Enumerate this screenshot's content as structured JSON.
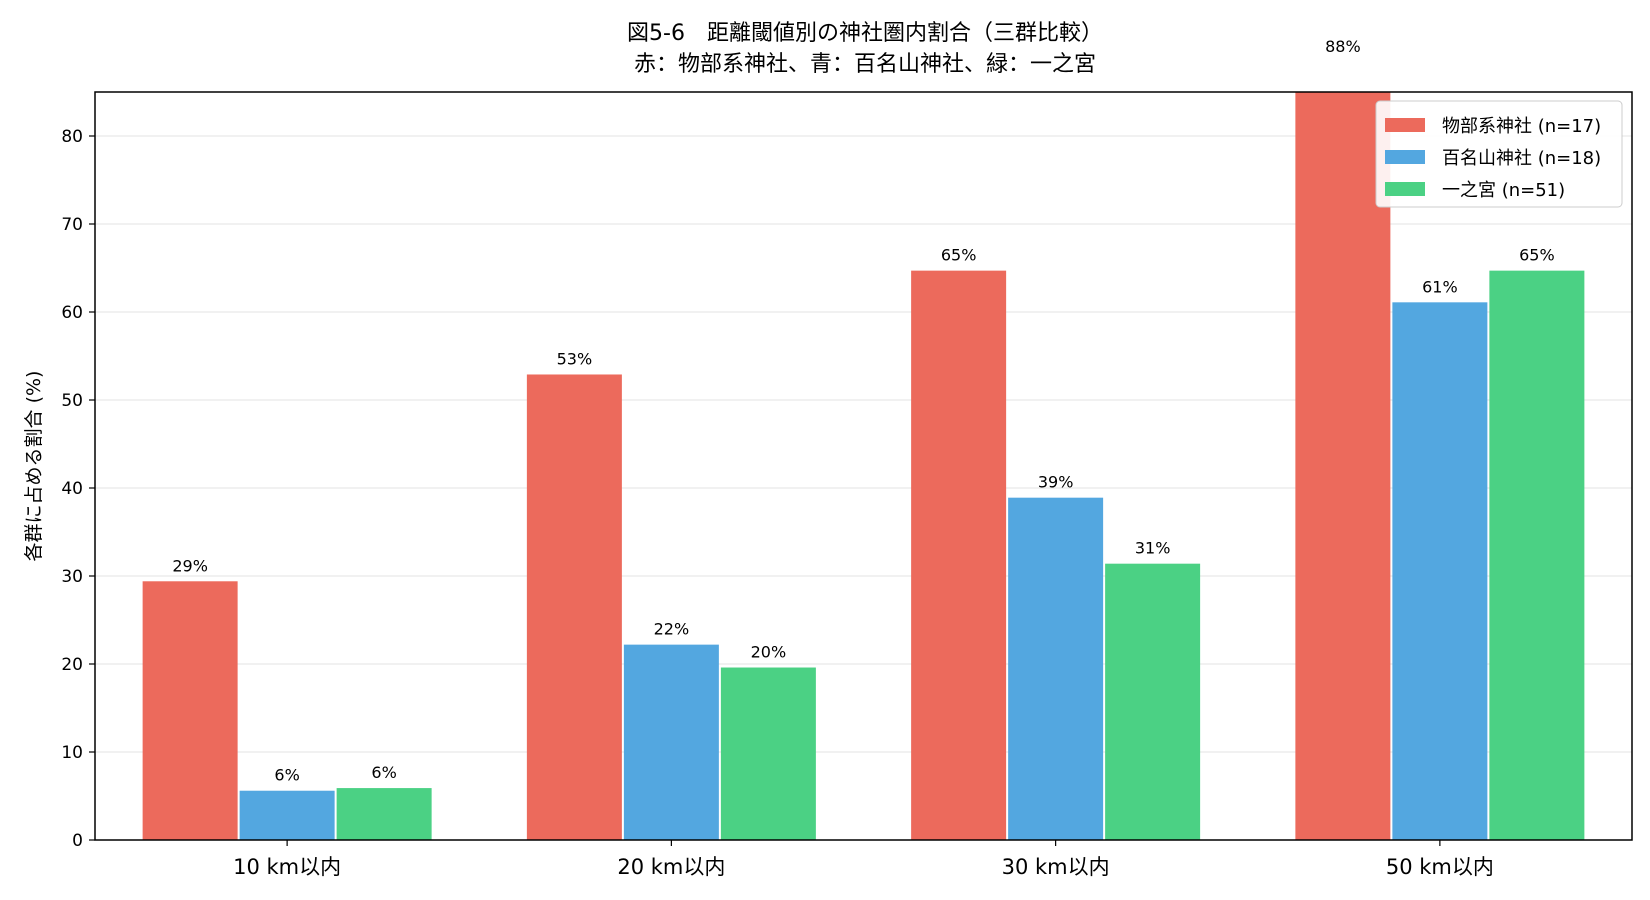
{
  "chart_data": {
    "type": "bar",
    "title": "図5-6　距離閾値別の神社圏内割合（三群比較）",
    "subtitle": "赤：物部系神社、青：百名山神社、緑：一之宮",
    "xlabel": "",
    "ylabel": "各群に占める割合 (%)",
    "ylim": [
      0,
      85
    ],
    "yticks": [
      0,
      10,
      20,
      30,
      40,
      50,
      60,
      70,
      80
    ],
    "grid": "horizontal",
    "legend_position": "top-right",
    "categories": [
      "10 km以内",
      "20 km以内",
      "30 km以内",
      "50 km以内"
    ],
    "series": [
      {
        "name": "物部系神社 (n=17)",
        "color": "#ec6a5c",
        "values": [
          29.4,
          52.9,
          64.7,
          88.2
        ],
        "labels": [
          "29%",
          "53%",
          "65%",
          "88%"
        ]
      },
      {
        "name": "百名山神社 (n=18)",
        "color": "#53a7e0",
        "values": [
          5.6,
          22.2,
          38.9,
          61.1
        ],
        "labels": [
          "6%",
          "22%",
          "39%",
          "61%"
        ]
      },
      {
        "name": "一之宮 (n=51)",
        "color": "#4bd184",
        "values": [
          5.9,
          19.6,
          31.4,
          64.7
        ],
        "labels": [
          "6%",
          "20%",
          "31%",
          "65%"
        ]
      }
    ]
  }
}
